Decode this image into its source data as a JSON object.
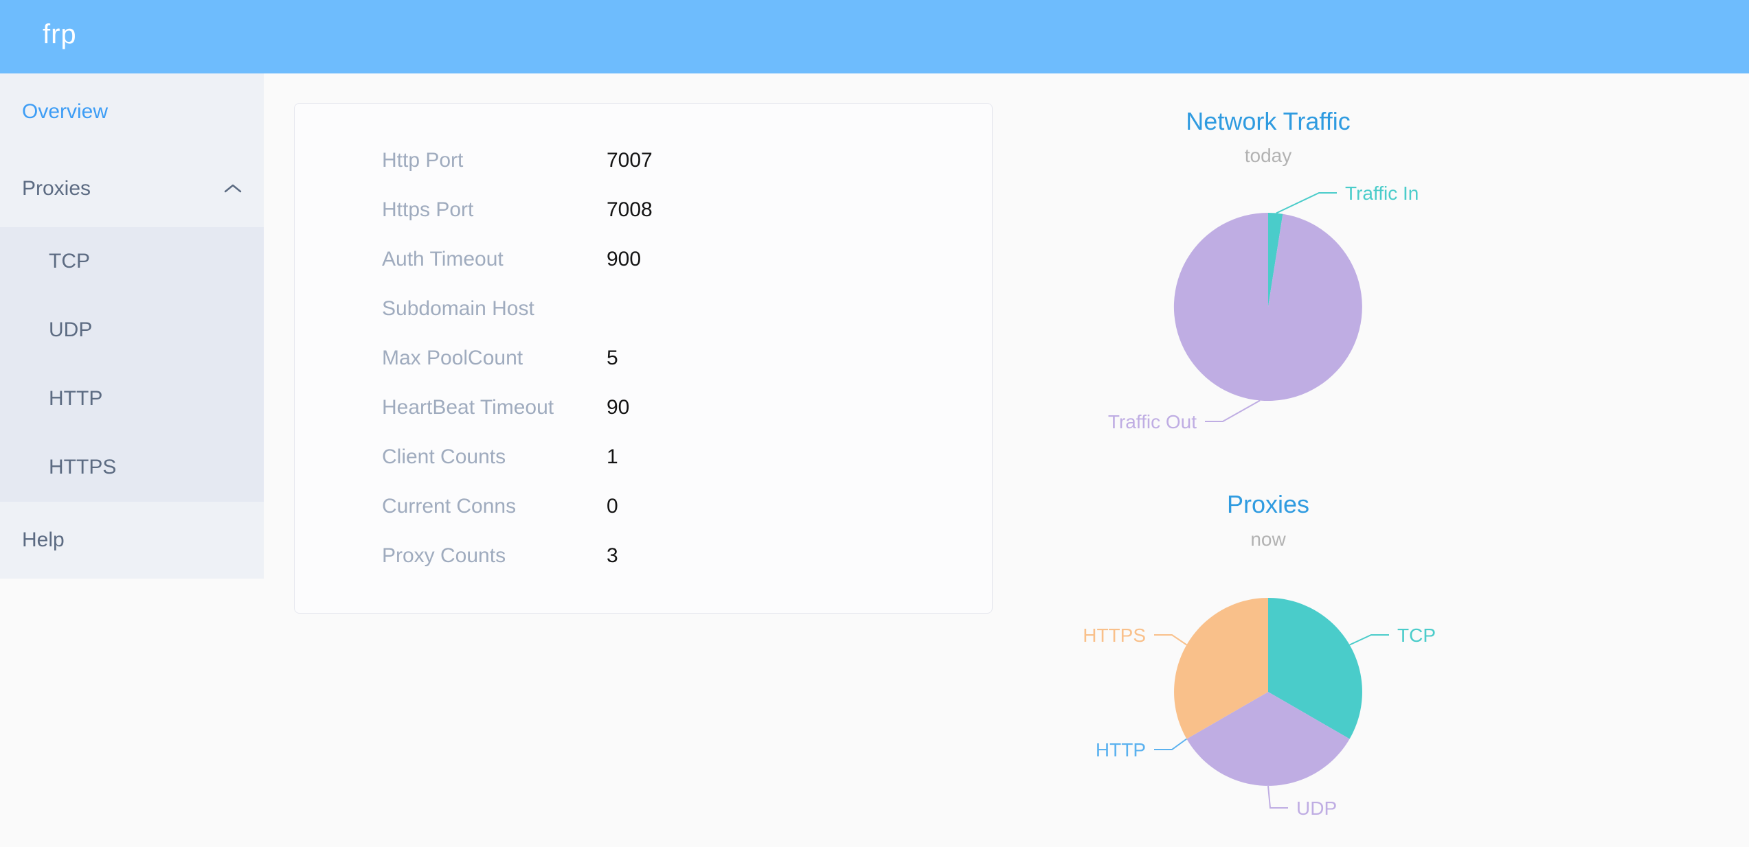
{
  "header": {
    "logo": "frp"
  },
  "sidebar": {
    "items": [
      {
        "label": "Overview",
        "active": true
      },
      {
        "label": "Proxies",
        "active": false,
        "expanded": true,
        "children": [
          "TCP",
          "UDP",
          "HTTP",
          "HTTPS"
        ]
      },
      {
        "label": "Help",
        "active": false
      }
    ]
  },
  "overview_card": {
    "rows": [
      {
        "label": "Http Port",
        "value": "7007"
      },
      {
        "label": "Https Port",
        "value": "7008"
      },
      {
        "label": "Auth Timeout",
        "value": "900"
      },
      {
        "label": "Subdomain Host",
        "value": ""
      },
      {
        "label": "Max PoolCount",
        "value": "5"
      },
      {
        "label": "HeartBeat Timeout",
        "value": "90"
      },
      {
        "label": "Client Counts",
        "value": "1"
      },
      {
        "label": "Current Conns",
        "value": "0"
      },
      {
        "label": "Proxy Counts",
        "value": "3"
      }
    ]
  },
  "colors": {
    "header_bg": "#6ebcfd",
    "active_link_blue": "#3d9df5",
    "menu_text": "#5c6b82",
    "chart_title_blue": "#2f9be0",
    "teal": "#4accca",
    "purple": "#bfade3",
    "orange": "#f9c08a",
    "http_blue": "#5ab1ef"
  },
  "chart_data": [
    {
      "type": "pie",
      "title": "Network Traffic",
      "subtitle": "today",
      "unit": "percent_estimated",
      "start_angle": "12-oclock-clockwise",
      "legend_position": "callout-labels",
      "slices": [
        {
          "name": "Traffic In",
          "value": 2.5,
          "color": "#4accca"
        },
        {
          "name": "Traffic Out",
          "value": 97.5,
          "color": "#bfade3"
        }
      ]
    },
    {
      "type": "pie",
      "title": "Proxies",
      "subtitle": "now",
      "unit": "proxy_count",
      "start_angle": "12-oclock-clockwise",
      "legend_position": "callout-labels",
      "slices": [
        {
          "name": "TCP",
          "value": 1,
          "color": "#4accca"
        },
        {
          "name": "UDP",
          "value": 1,
          "color": "#bfade3"
        },
        {
          "name": "HTTP",
          "value": 0,
          "color": "#5ab1ef"
        },
        {
          "name": "HTTPS",
          "value": 1,
          "color": "#f9c08a"
        }
      ]
    }
  ]
}
